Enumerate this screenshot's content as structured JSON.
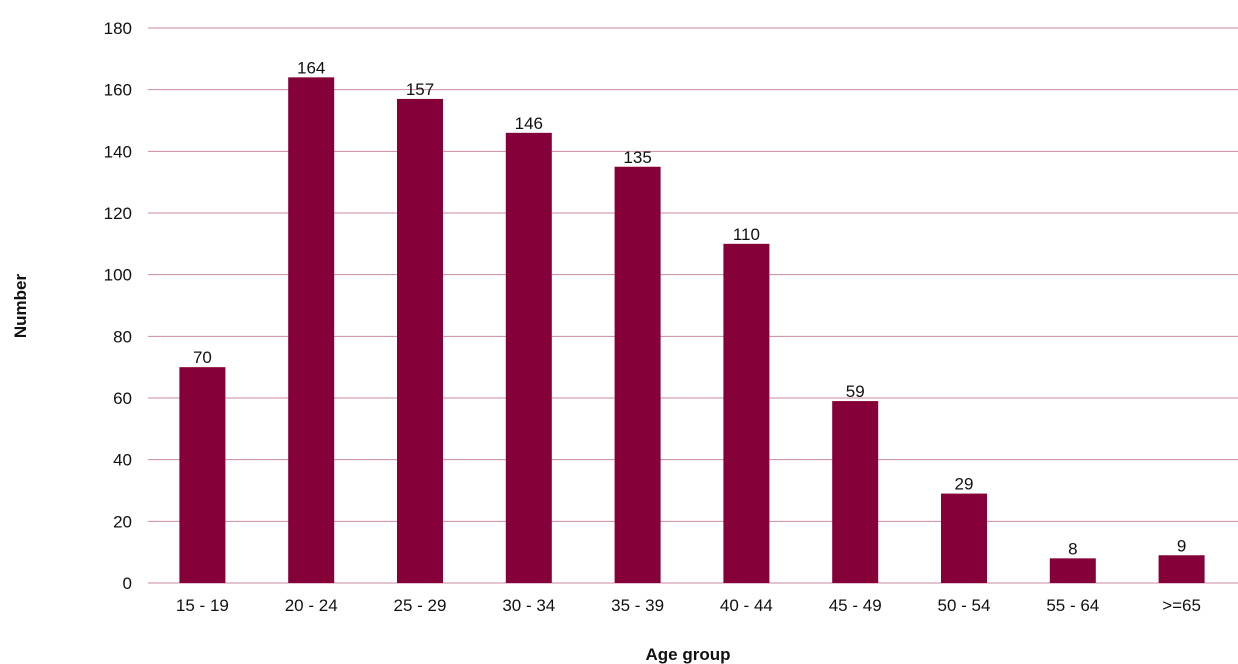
{
  "chart_data": {
    "type": "bar",
    "categories": [
      "15 - 19",
      "20 - 24",
      "25 - 29",
      "30 - 34",
      "35 - 39",
      "40 - 44",
      "45 - 49",
      "50 - 54",
      "55 - 64",
      ">=65"
    ],
    "values": [
      70,
      164,
      157,
      146,
      135,
      110,
      59,
      29,
      8,
      9
    ],
    "data_labels": [
      "70",
      "164",
      "157",
      "146",
      "135",
      "110",
      "59",
      "29",
      "8",
      "9"
    ],
    "xlabel": "Age group",
    "ylabel": "Number",
    "ylim": [
      0,
      180
    ],
    "yticks": [
      0,
      20,
      40,
      60,
      80,
      100,
      120,
      140,
      160,
      180
    ],
    "grid": true,
    "legend": "none",
    "bar_color": "#850038",
    "grid_color": "#c98aa3"
  }
}
